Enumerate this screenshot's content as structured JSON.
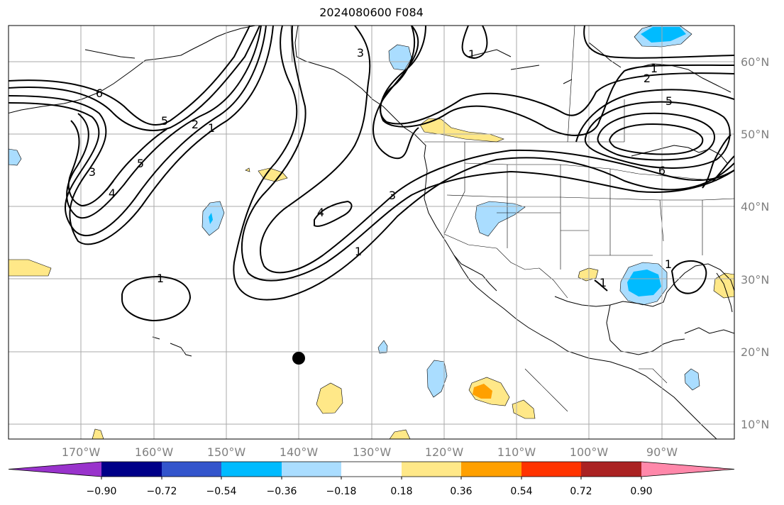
{
  "title": "2024080600 F084",
  "lon_labels": [
    "170°W",
    "160°W",
    "150°W",
    "140°W",
    "130°W",
    "120°W",
    "110°W",
    "100°W",
    "90°W"
  ],
  "lat_labels": [
    "60°N",
    "50°N",
    "40°N",
    "30°N",
    "20°N",
    "10°N"
  ],
  "colorbar": {
    "tick_labels": [
      "−0.90",
      "−0.72",
      "−0.54",
      "−0.36",
      "−0.18",
      "0.18",
      "0.36",
      "0.54",
      "0.72",
      "0.90"
    ],
    "colors": [
      "#9933cc",
      "#000088",
      "#3355cc",
      "#00bbff",
      "#aaddff",
      "#ffffff",
      "#ffe888",
      "#ffa000",
      "#ff3300",
      "#aa2222",
      "#ff88aa"
    ]
  },
  "contour_labels": [
    "6",
    "5",
    "2",
    "1",
    "3",
    "4",
    "5",
    "3",
    "4",
    "3",
    "1",
    "1",
    "1",
    "2",
    "5",
    "6",
    "1",
    "1",
    "1"
  ],
  "fill_colors": {
    "positive": "#ffe888",
    "positive_strong": "#ffa000",
    "negative": "#aaddff",
    "negative_strong": "#00bbff"
  },
  "marker": {
    "name": "storm-position",
    "lon": -140,
    "lat": 19
  }
}
